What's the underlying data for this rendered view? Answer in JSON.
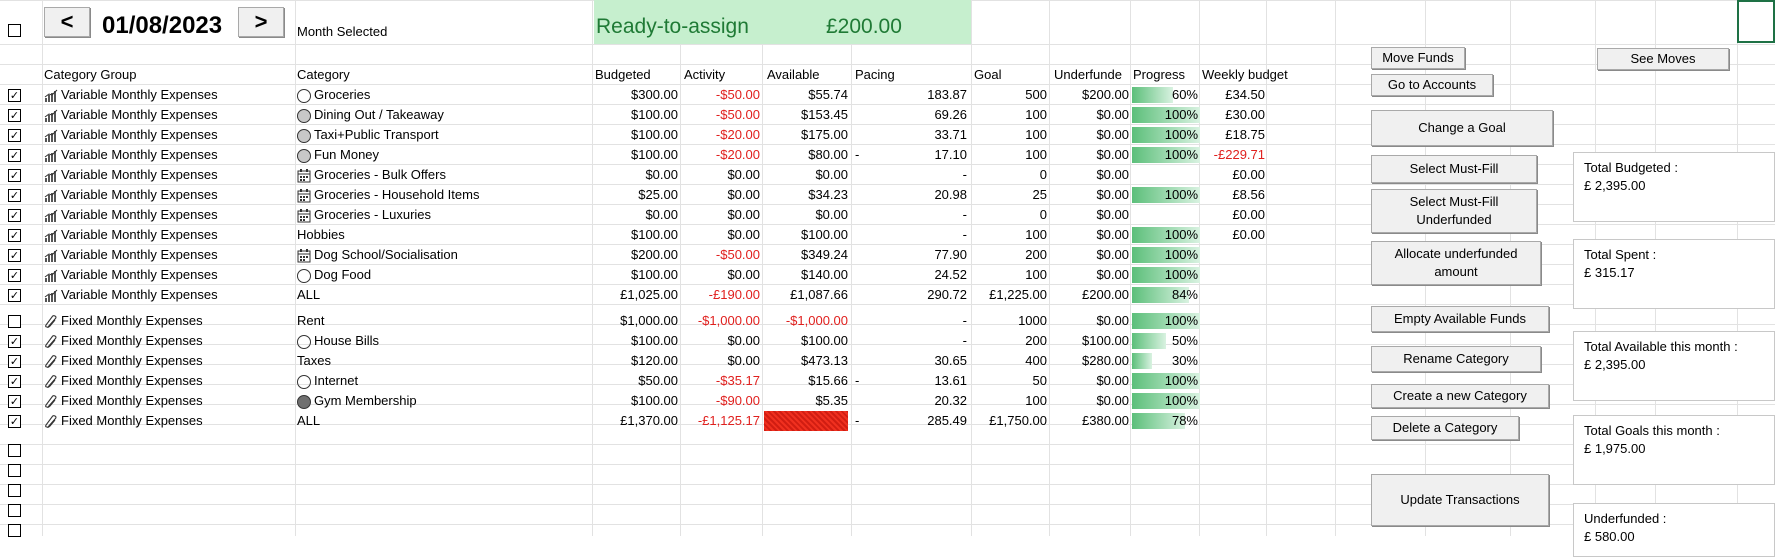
{
  "header": {
    "prev_label": "<",
    "next_label": ">",
    "date": "01/08/2023",
    "month_label": "Month Selected",
    "ready_label": "Ready-to-assign",
    "ready_value": "£200.00"
  },
  "columns": [
    "Category Group",
    "Category",
    "Budgeted",
    "Activity",
    "Available",
    "Pacing",
    "Goal",
    "Underfunde",
    "Progress",
    "Weekly budget"
  ],
  "rows": [
    {
      "checked": true,
      "group": "Variable Monthly Expenses",
      "gicon": "chart-icon",
      "cicon": "circle",
      "category": "Groceries",
      "budgeted": "$300.00",
      "activity": "-$50.00",
      "available": "$55.74",
      "pacing": "183.87",
      "goal": "500",
      "under": "$200.00",
      "progress": 0.6,
      "plabel": "60%",
      "weekly": "£34.50"
    },
    {
      "checked": true,
      "group": "Variable Monthly Expenses",
      "gicon": "chart-icon",
      "cicon": "circle-gray",
      "category": "Dining Out / Takeaway",
      "budgeted": "$100.00",
      "activity": "-$50.00",
      "available": "$153.45",
      "pacing": "69.26",
      "goal": "100",
      "under": "$0.00",
      "progress": 1,
      "plabel": "100%",
      "weekly": "£30.00"
    },
    {
      "checked": true,
      "group": "Variable Monthly Expenses",
      "gicon": "chart-icon",
      "cicon": "circle-gray",
      "category": "Taxi+Public Transport",
      "budgeted": "$100.00",
      "activity": "-$20.00",
      "available": "$175.00",
      "pacing": "33.71",
      "goal": "100",
      "under": "$0.00",
      "progress": 1,
      "plabel": "100%",
      "weekly": "£18.75"
    },
    {
      "checked": true,
      "group": "Variable Monthly Expenses",
      "gicon": "chart-icon",
      "cicon": "circle-gray",
      "category": "Fun Money",
      "budgeted": "$100.00",
      "activity": "-$20.00",
      "available": "$80.00",
      "pacingPrefix": "-",
      "pacing": "17.10",
      "goal": "100",
      "under": "$0.00",
      "progress": 1,
      "plabel": "100%",
      "weekly": "-£229.71",
      "weeklyNeg": true
    },
    {
      "checked": true,
      "group": "Variable Monthly Expenses",
      "gicon": "chart-icon",
      "cicon": "calendar",
      "category": "Groceries - Bulk Offers",
      "budgeted": "$0.00",
      "activity": "$0.00",
      "available": "$0.00",
      "pacing": "-",
      "goal": "0",
      "under": "$0.00",
      "progress": 0,
      "plabel": "",
      "weekly": "£0.00"
    },
    {
      "checked": true,
      "group": "Variable Monthly Expenses",
      "gicon": "chart-icon",
      "cicon": "calendar",
      "category": "Groceries - Household Items",
      "budgeted": "$25.00",
      "activity": "$0.00",
      "available": "$34.23",
      "pacing": "20.98",
      "goal": "25",
      "under": "$0.00",
      "progress": 1,
      "plabel": "100%",
      "weekly": "£8.56"
    },
    {
      "checked": true,
      "group": "Variable Monthly Expenses",
      "gicon": "chart-icon",
      "cicon": "calendar",
      "category": "Groceries - Luxuries",
      "budgeted": "$0.00",
      "activity": "$0.00",
      "available": "$0.00",
      "pacing": "-",
      "goal": "0",
      "under": "$0.00",
      "progress": 0,
      "plabel": "",
      "weekly": "£0.00"
    },
    {
      "checked": true,
      "group": "Variable Monthly Expenses",
      "gicon": "chart-icon",
      "cicon": "",
      "category": "Hobbies",
      "budgeted": "$100.00",
      "activity": "$0.00",
      "available": "$100.00",
      "pacing": "-",
      "goal": "100",
      "under": "$0.00",
      "progress": 1,
      "plabel": "100%",
      "weekly": "£0.00"
    },
    {
      "checked": true,
      "group": "Variable Monthly Expenses",
      "gicon": "chart-icon",
      "cicon": "calendar",
      "category": "Dog School/Socialisation",
      "budgeted": "$200.00",
      "activity": "-$50.00",
      "available": "$349.24",
      "pacing": "77.90",
      "goal": "200",
      "under": "$0.00",
      "progress": 1,
      "plabel": "100%",
      "weekly": ""
    },
    {
      "checked": true,
      "group": "Variable Monthly Expenses",
      "gicon": "chart-icon",
      "cicon": "circle",
      "category": "Dog Food",
      "budgeted": "$100.00",
      "activity": "$0.00",
      "available": "$140.00",
      "pacing": "24.52",
      "goal": "100",
      "under": "$0.00",
      "progress": 1,
      "plabel": "100%",
      "weekly": ""
    },
    {
      "checked": true,
      "group": "Variable Monthly Expenses",
      "gicon": "chart-icon",
      "cicon": "",
      "category": "ALL",
      "budgeted": "£1,025.00",
      "activity": "-£190.00",
      "available": "£1,087.66",
      "pacing": "290.72",
      "goal": "£1,225.00",
      "under": "£200.00",
      "progress": 0.84,
      "plabel": "84%",
      "weekly": ""
    },
    {
      "checked": false,
      "group": "Fixed Monthly Expenses",
      "gicon": "paperclip-icon",
      "cicon": "",
      "category": "Rent",
      "budgeted": "$1,000.00",
      "activity": "-$1,000.00",
      "available": "-$1,000.00",
      "availableNeg": true,
      "pacing": "-",
      "goal": "1000",
      "under": "$0.00",
      "progress": 1,
      "plabel": "100%",
      "weekly": ""
    },
    {
      "checked": true,
      "group": "Fixed Monthly Expenses",
      "gicon": "paperclip-icon",
      "cicon": "circle",
      "category": "House Bills",
      "budgeted": "$100.00",
      "activity": "$0.00",
      "available": "$100.00",
      "pacing": "-",
      "goal": "200",
      "under": "$100.00",
      "progress": 0.5,
      "plabel": "50%",
      "weekly": ""
    },
    {
      "checked": true,
      "group": "Fixed Monthly Expenses",
      "gicon": "paperclip-icon",
      "cicon": "",
      "category": "Taxes",
      "budgeted": "$120.00",
      "activity": "$0.00",
      "available": "$473.13",
      "pacing": "30.65",
      "goal": "400",
      "under": "$280.00",
      "progress": 0.3,
      "plabel": "30%",
      "weekly": ""
    },
    {
      "checked": true,
      "group": "Fixed Monthly Expenses",
      "gicon": "paperclip-icon",
      "cicon": "circle",
      "category": "Internet",
      "budgeted": "$50.00",
      "activity": "-$35.17",
      "available": "$15.66",
      "pacingPrefix": "-",
      "pacing": "13.61",
      "goal": "50",
      "under": "$0.00",
      "progress": 1,
      "plabel": "100%",
      "weekly": ""
    },
    {
      "checked": true,
      "group": "Fixed Monthly Expenses",
      "gicon": "paperclip-icon",
      "cicon": "circle-dark",
      "category": "Gym Membership",
      "budgeted": "$100.00",
      "activity": "-$90.00",
      "available": "$5.35",
      "pacing": "20.32",
      "goal": "100",
      "under": "$0.00",
      "progress": 1,
      "plabel": "100%",
      "weekly": ""
    },
    {
      "checked": true,
      "group": "Fixed Monthly Expenses",
      "gicon": "paperclip-icon",
      "cicon": "",
      "category": "ALL",
      "budgeted": "£1,370.00",
      "activity": "-£1,125.17",
      "available": "",
      "availableRed": true,
      "pacingPrefix": "-",
      "pacing": "285.49",
      "goal": "£1,750.00",
      "under": "£380.00",
      "progress": 0.78,
      "plabel": "78%",
      "weekly": ""
    }
  ],
  "buttons": {
    "move_funds": "Move Funds",
    "see_moves": "See Moves",
    "go_accounts": "Go to Accounts",
    "change_goal": "Change a Goal",
    "select_must_fill": "Select Must-Fill",
    "select_must_fill_under": "Select Must-Fill Underfunded",
    "allocate_under": "Allocate underfunded amount",
    "empty_available": "Empty Available Funds",
    "rename_category": "Rename Category",
    "create_category": "Create a new Category",
    "delete_category": "Delete a Category",
    "update_transactions": "Update Transactions"
  },
  "summary": {
    "total_budgeted_label": "Total Budgeted :",
    "total_budgeted": "£ 2,395.00",
    "total_spent_label": "Total Spent :",
    "total_spent": "£ 315.17",
    "total_available_label": "Total Available this month :",
    "total_available": "£ 2,395.00",
    "total_goals_label": "Total Goals this month :",
    "total_goals": "£ 1,975.00",
    "underfunded_label": "Underfunded :",
    "underfunded": "£ 580.00"
  }
}
